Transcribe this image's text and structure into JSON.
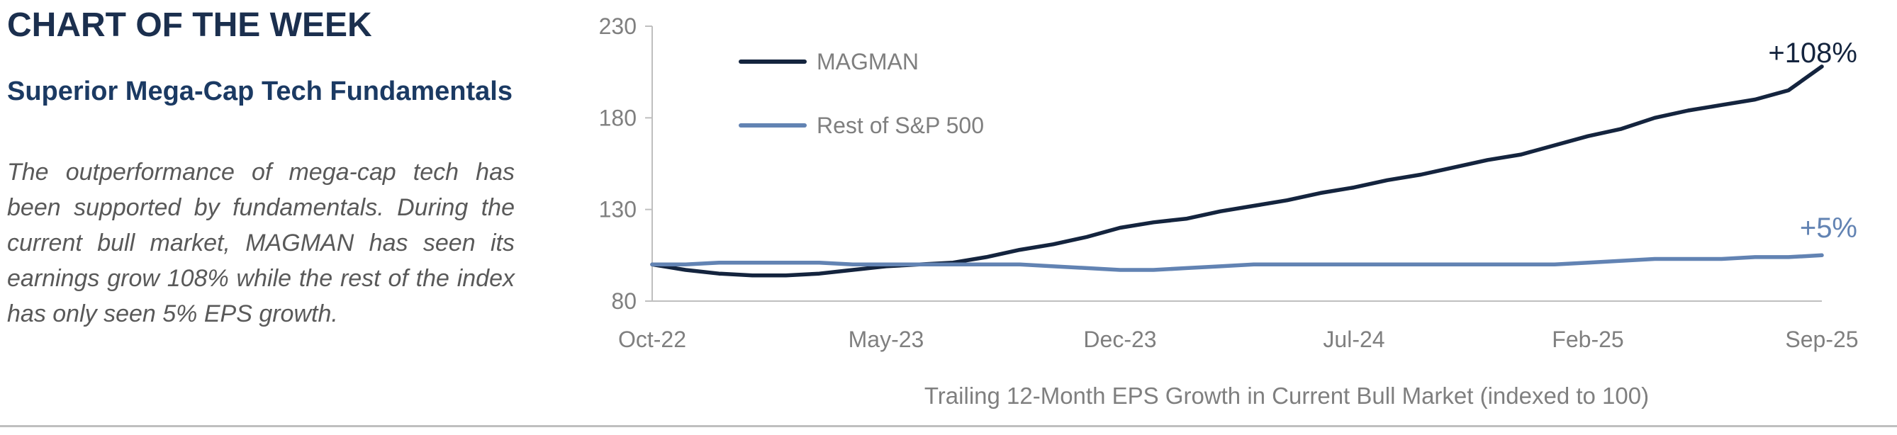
{
  "panel": {
    "header": "CHART OF THE WEEK",
    "subtitle": "Superior Mega-Cap Tech Fundamentals",
    "body": "The outperformance of mega-cap tech has been supported by fundamentals. During the current bull market, MAGMAN has seen its earnings grow 108% while the rest of the index has only seen 5% EPS growth."
  },
  "chart_data": {
    "type": "line",
    "title": "",
    "xlabel": "Trailing 12-Month EPS Growth in Current Bull Market (indexed to 100)",
    "ylabel": "",
    "ylim": [
      80,
      230
    ],
    "yticks": [
      80,
      130,
      180,
      230
    ],
    "xticks": [
      "Oct-22",
      "May-23",
      "Dec-23",
      "Jul-24",
      "Feb-25",
      "Sep-25"
    ],
    "x": [
      "Oct-22",
      "Nov-22",
      "Dec-22",
      "Jan-23",
      "Feb-23",
      "Mar-23",
      "Apr-23",
      "May-23",
      "Jun-23",
      "Jul-23",
      "Aug-23",
      "Sep-23",
      "Oct-23",
      "Nov-23",
      "Dec-23",
      "Jan-24",
      "Feb-24",
      "Mar-24",
      "Apr-24",
      "May-24",
      "Jun-24",
      "Jul-24",
      "Aug-24",
      "Sep-24",
      "Oct-24",
      "Nov-24",
      "Dec-24",
      "Jan-25",
      "Feb-25",
      "Mar-25",
      "Apr-25",
      "May-25",
      "Jun-25",
      "Jul-25",
      "Aug-25",
      "Sep-25"
    ],
    "grid": false,
    "legend_position": "top-left",
    "series": [
      {
        "name": "MAGMAN",
        "color": "#14243e",
        "values": [
          100,
          97,
          95,
          94,
          94,
          95,
          97,
          99,
          100,
          101,
          104,
          108,
          111,
          115,
          120,
          123,
          125,
          129,
          132,
          135,
          139,
          142,
          146,
          149,
          153,
          157,
          160,
          165,
          170,
          174,
          180,
          184,
          187,
          190,
          195,
          208
        ]
      },
      {
        "name": "Rest of S&P 500",
        "color": "#6283b3",
        "values": [
          100,
          100,
          101,
          101,
          101,
          101,
          100,
          100,
          100,
          100,
          100,
          100,
          99,
          98,
          97,
          97,
          98,
          99,
          100,
          100,
          100,
          100,
          100,
          100,
          100,
          100,
          100,
          100,
          101,
          102,
          103,
          103,
          103,
          104,
          104,
          105
        ]
      }
    ],
    "annotations": [
      {
        "text": "+108%",
        "series": 0
      },
      {
        "text": "+5%",
        "series": 1
      }
    ]
  }
}
